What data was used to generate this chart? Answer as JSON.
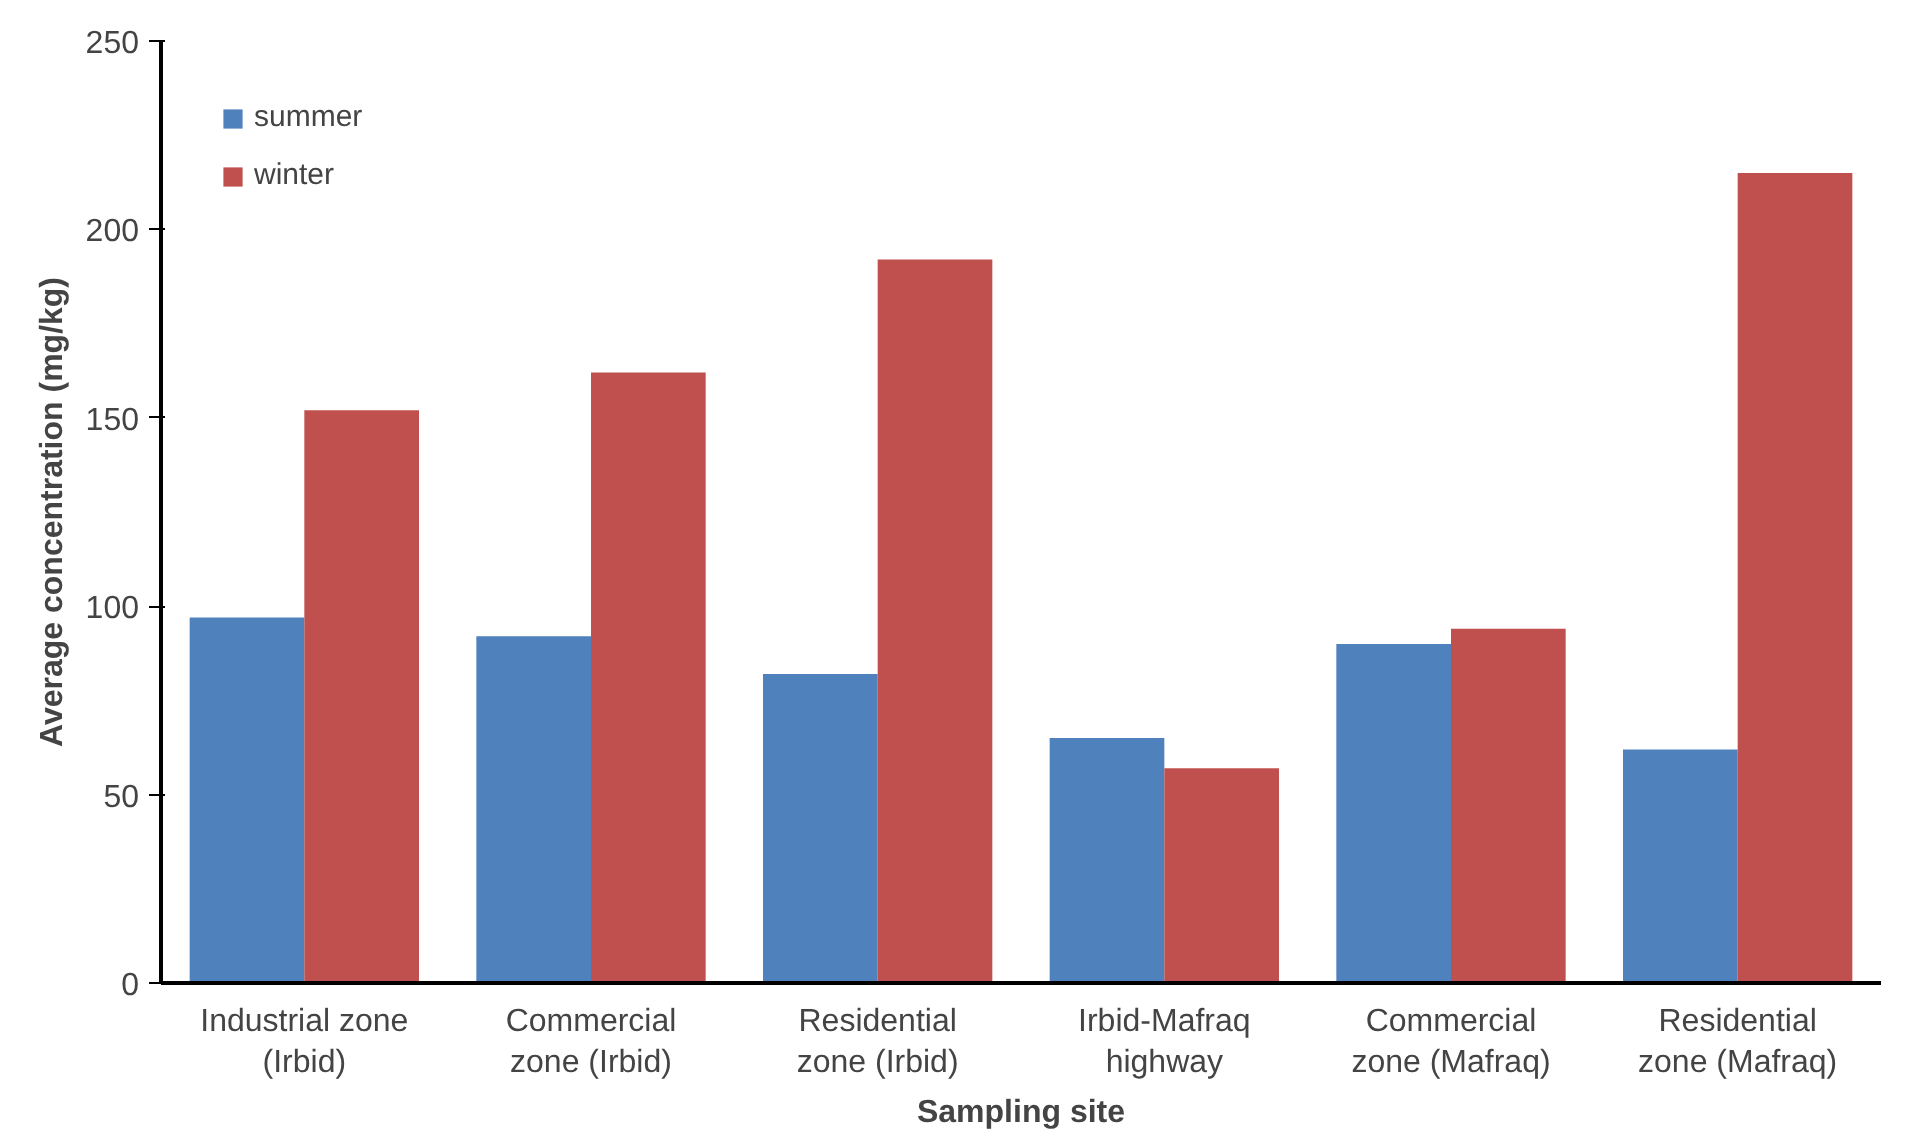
{
  "chart_data": {
    "type": "bar",
    "xlabel": "Sampling site",
    "ylabel": "Average concentration (mg/kg)",
    "categories": [
      "Industrial zone\n(Irbid)",
      "Commercial\nzone (Irbid)",
      "Residential\nzone (Irbid)",
      "Irbid-Mafraq\nhighway",
      "Commercial\nzone (Mafraq)",
      "Residential\nzone (Mafraq)"
    ],
    "series": [
      {
        "name": "summer",
        "color": "#4f81bd",
        "values": [
          97,
          92,
          82,
          65,
          90,
          62
        ]
      },
      {
        "name": "winter",
        "color": "#c0504d",
        "values": [
          152,
          162,
          192,
          57,
          94,
          215
        ]
      }
    ],
    "ylim": [
      0,
      250
    ],
    "yticks": [
      0,
      50,
      100,
      150,
      200,
      250
    ],
    "grid": false,
    "legend": "top left"
  }
}
